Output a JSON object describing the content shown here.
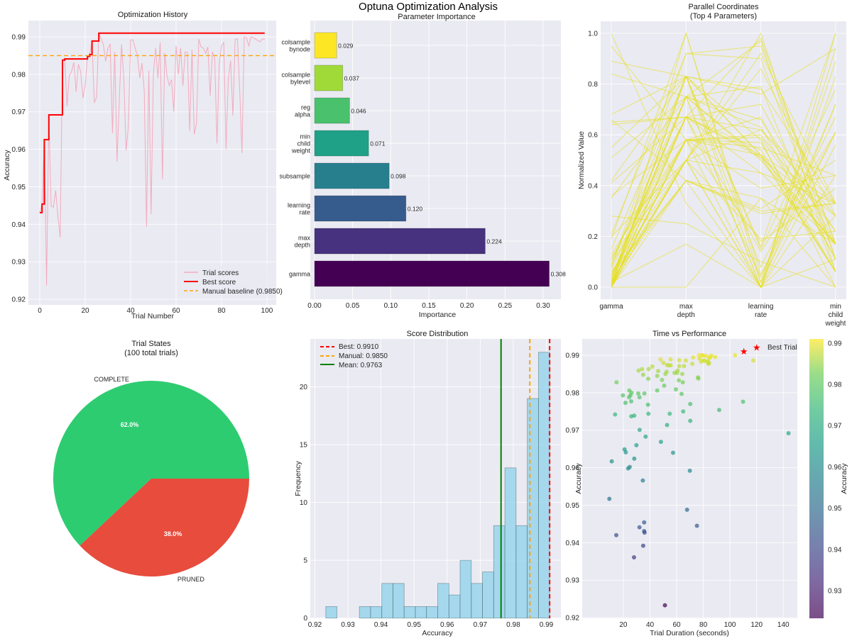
{
  "suptitle": "Optuna Optimization Analysis",
  "chart_data": [
    {
      "type": "line",
      "title": "Optimization History",
      "xlabel": "Trial Number",
      "ylabel": "Accuracy",
      "xlim": [
        -5,
        104
      ],
      "ylim": [
        0.9186,
        0.9943
      ],
      "xticks": [
        "0",
        "20",
        "40",
        "60",
        "80",
        "100"
      ],
      "yticks": [
        "0.92",
        "0.93",
        "0.94",
        "0.95",
        "0.96",
        "0.97",
        "0.98",
        "0.99"
      ],
      "grid": true,
      "legend_position": "lower-right",
      "series": [
        {
          "name": "Trial scores",
          "color": "#f4a0b4",
          "values": [
            0.9431,
            0.9454,
            0.9626,
            0.9237,
            0.9692,
            0.9449,
            0.9445,
            0.949,
            0.942,
            0.9365,
            0.9838,
            0.9841,
            0.9715,
            0.9796,
            0.9808,
            0.9832,
            0.9754,
            0.9827,
            0.9807,
            0.9737,
            0.9771,
            0.9848,
            0.9853,
            0.9889,
            0.9724,
            0.9739,
            0.991,
            0.9895,
            0.9879,
            0.9835,
            0.987,
            0.988,
            0.9643,
            0.986,
            0.9567,
            0.973,
            0.988,
            0.979,
            0.9597,
            0.9662,
            0.9892,
            0.9892,
            0.987,
            0.985,
            0.979,
            0.983,
            0.9755,
            0.9393,
            0.981,
            0.9427,
            0.98,
            0.987,
            0.979,
            0.9885,
            0.952,
            0.9857,
            0.9796,
            0.977,
            0.9786,
            0.97,
            0.9876,
            0.98,
            0.987,
            0.977,
            0.986,
            0.9858,
            0.9649,
            0.9866,
            0.964,
            0.967,
            0.9894,
            0.9873,
            0.987,
            0.9856,
            0.9873,
            0.9743,
            0.986,
            0.9843,
            0.9616,
            0.983,
            0.9876,
            0.9885,
            0.96,
            0.979,
            0.9836,
            0.969,
            0.9894,
            0.9894,
            0.976,
            0.959,
            0.99,
            0.9897,
            0.9876,
            0.99,
            0.9898,
            0.9894,
            0.989,
            0.9887,
            0.9894,
            0.9894
          ]
        },
        {
          "name": "Best score",
          "color": "#ff0000"
        },
        {
          "name": "Manual baseline (0.9850)",
          "color": "#ffa500",
          "value": 0.985
        }
      ]
    },
    {
      "type": "bar",
      "orientation": "horizontal",
      "title": "Parameter Importance",
      "xlabel": "Importance",
      "xlim": [
        0,
        0.3233
      ],
      "xticks": [
        "0.00",
        "0.05",
        "0.10",
        "0.15",
        "0.20",
        "0.25",
        "0.30"
      ],
      "categories": [
        [
          "gamma"
        ],
        [
          "max",
          "depth"
        ],
        [
          "learning",
          "rate"
        ],
        [
          "subsample"
        ],
        [
          "min",
          "child",
          "weight"
        ],
        [
          "reg",
          "alpha"
        ],
        [
          "colsample",
          "bylevel"
        ],
        [
          "colsample",
          "bynode"
        ]
      ],
      "values": [
        0.308,
        0.224,
        0.12,
        0.098,
        0.071,
        0.046,
        0.037,
        0.029
      ],
      "colors": [
        "#440154",
        "#46327e",
        "#365c8d",
        "#277f8e",
        "#1fa187",
        "#4ac16d",
        "#a0da39",
        "#fde725"
      ]
    },
    {
      "type": "line",
      "subtype": "parallel-coordinates",
      "title": [
        "Parallel Coordinates",
        "(Top 4 Parameters)"
      ],
      "ylabel": "Normalized Value",
      "axes": [
        [
          "gamma"
        ],
        [
          "max",
          "depth"
        ],
        [
          "learning",
          "rate"
        ],
        [
          "min",
          "child",
          "weight"
        ]
      ],
      "ylim": [
        -0.05,
        1.05
      ],
      "yticks": [
        "0.0",
        "0.2",
        "0.4",
        "0.6",
        "0.8",
        "1.0"
      ],
      "color": "#e6e01c",
      "lines": [
        [
          1.0,
          0.33,
          0.0,
          0.11
        ],
        [
          0.95,
          0.58,
          0.52,
          0.17
        ],
        [
          0.89,
          0.83,
          0.52,
          0.06
        ],
        [
          0.84,
          0.75,
          0.5,
          0.17
        ],
        [
          0.68,
          0.83,
          0.76,
          0.94
        ],
        [
          0.66,
          0.42,
          0.35,
          0.0
        ],
        [
          0.65,
          0.67,
          0.62,
          0.28
        ],
        [
          0.55,
          0.83,
          0.78,
          0.33
        ],
        [
          0.51,
          0.75,
          0.66,
          0.22
        ],
        [
          0.42,
          0.83,
          0.52,
          0.33
        ],
        [
          0.41,
          0.67,
          0.98,
          0.17
        ],
        [
          0.36,
          0.58,
          0.55,
          0.44
        ],
        [
          0.35,
          0.75,
          0.0,
          1.0
        ],
        [
          0.28,
          0.25,
          0.1,
          0.0
        ],
        [
          0.21,
          0.92,
          0.9,
          0.11
        ],
        [
          0.19,
          1.0,
          0.02,
          0.89
        ],
        [
          0.15,
          0.83,
          0.15,
          0.78
        ],
        [
          0.12,
          0.5,
          0.0,
          0.72
        ],
        [
          0.1,
          0.75,
          0.97,
          0.06
        ],
        [
          0.09,
          0.58,
          0.59,
          0.17
        ],
        [
          0.08,
          0.83,
          0.02,
          0.61
        ],
        [
          0.07,
          0.67,
          0.51,
          0.06
        ],
        [
          0.06,
          0.5,
          0.45,
          0.33
        ],
        [
          0.05,
          0.58,
          0.18,
          0.39
        ],
        [
          0.04,
          0.75,
          0.63,
          0.11
        ],
        [
          0.03,
          0.42,
          0.0,
          0.94
        ],
        [
          0.03,
          0.67,
          0.52,
          0.17
        ],
        [
          0.02,
          0.5,
          0.86,
          0.28
        ],
        [
          0.02,
          0.83,
          0.08,
          0.67
        ],
        [
          0.01,
          0.58,
          0.6,
          0.22
        ],
        [
          0.01,
          0.75,
          0.0,
          0.83
        ],
        [
          0.0,
          0.42,
          0.31,
          0.5
        ],
        [
          0.0,
          0.67,
          0.54,
          0.06
        ],
        [
          0.0,
          0.5,
          1.0,
          0.11
        ],
        [
          0.0,
          0.83,
          0.16,
          1.0
        ],
        [
          0.0,
          0.58,
          0.39,
          0.44
        ],
        [
          0.0,
          0.0,
          0.35,
          0.17
        ],
        [
          0.02,
          0.17,
          0.0,
          0.28
        ],
        [
          0.06,
          0.42,
          0.29,
          0.33
        ],
        [
          0.11,
          0.67,
          0.72,
          0.17
        ],
        [
          0.13,
          0.58,
          0.0,
          0.56
        ],
        [
          0.0,
          1.0,
          0.05,
          0.61
        ],
        [
          0.04,
          0.75,
          0.79,
          0.06
        ],
        [
          0.0,
          0.5,
          0.62,
          0.33
        ],
        [
          0.01,
          0.83,
          0.58,
          0.0
        ],
        [
          0.02,
          0.5,
          0.0,
          0.44
        ],
        [
          0.0,
          0.67,
          0.14,
          0.61
        ],
        [
          0.05,
          0.42,
          0.3,
          0.33
        ],
        [
          0.0,
          0.58,
          0.67,
          0.11
        ],
        [
          0.03,
          0.75,
          0.51,
          0.28
        ],
        [
          0.0,
          0.5,
          0.19,
          0.22
        ],
        [
          0.08,
          0.92,
          0.95,
          0.17
        ],
        [
          0.0,
          0.67,
          0.04,
          0.72
        ],
        [
          0.01,
          0.58,
          0.57,
          0.06
        ],
        [
          0.64,
          0.67,
          0.45,
          0.17
        ],
        [
          0.2,
          0.5,
          0.92,
          0.33
        ]
      ]
    },
    {
      "type": "pie",
      "title": [
        "Trial States",
        "(100 total trials)"
      ],
      "labels": [
        "COMPLETE",
        "PRUNED"
      ],
      "values": [
        62,
        38
      ],
      "pct_labels": [
        "62.0%",
        "38.0%"
      ],
      "colors": [
        "#2ecc71",
        "#e74c3c"
      ]
    },
    {
      "type": "bar",
      "subtype": "histogram",
      "title": "Score Distribution",
      "xlabel": "Accuracy",
      "ylabel": "Frequency",
      "bin_range": [
        0.9233,
        0.991
      ],
      "counts": [
        1,
        0,
        0,
        1,
        1,
        3,
        3,
        1,
        1,
        1,
        3,
        2,
        5,
        3,
        4,
        8,
        13,
        8,
        19,
        23
      ],
      "xlim": [
        0.9187,
        0.9944
      ],
      "ylim": [
        0,
        24.2
      ],
      "xticks": [
        "0.92",
        "0.93",
        "0.94",
        "0.95",
        "0.96",
        "0.97",
        "0.98",
        "0.99"
      ],
      "yticks": [
        "0",
        "5",
        "10",
        "15",
        "20"
      ],
      "bar_color": "#87ceeb",
      "legend_position": "upper-left",
      "vlines": [
        {
          "name": "Best: 0.9910",
          "value": 0.991,
          "color": "#ff0000",
          "style": "dashed"
        },
        {
          "name": "Manual: 0.9850",
          "value": 0.985,
          "color": "#ffa500",
          "style": "dashed"
        },
        {
          "name": "Mean: 0.9763",
          "value": 0.9763,
          "color": "#008000",
          "style": "solid"
        }
      ]
    },
    {
      "type": "scatter",
      "title": "Time vs Performance",
      "xlabel": "Trial Duration (seconds)",
      "ylabel": "Accuracy",
      "xticks": [
        "20",
        "40",
        "60",
        "80",
        "100",
        "120",
        "140"
      ],
      "yticks": [
        "0.92",
        "0.93",
        "0.94",
        "0.95",
        "0.96",
        "0.97",
        "0.98",
        "0.99"
      ],
      "colormap": "viridis",
      "color_range": [
        0.9233,
        0.991
      ],
      "colorbar_label": "Accuracy",
      "colorbar_ticks": [
        "0.93",
        "0.94",
        "0.95",
        "0.96",
        "0.97",
        "0.98",
        "0.99"
      ],
      "legend_position": "upper-right",
      "best": {
        "name": "Best Trial",
        "x": 110.4,
        "y": 0.991,
        "color": "#ff0000"
      },
      "points": [
        [
          13.8,
          0.9742
        ],
        [
          21.6,
          0.9773
        ],
        [
          25.9,
          0.9777
        ],
        [
          38.5,
          0.9768
        ],
        [
          70.2,
          0.977
        ],
        [
          109.8,
          0.9776
        ],
        [
          91.9,
          0.9754
        ],
        [
          64.9,
          0.975
        ],
        [
          54.8,
          0.9744
        ],
        [
          38.8,
          0.9744
        ],
        [
          28.2,
          0.9739
        ],
        [
          26,
          0.9737
        ],
        [
          70.2,
          0.9725
        ],
        [
          52.8,
          0.9714
        ],
        [
          32.2,
          0.9701
        ],
        [
          143.9,
          0.9692
        ],
        [
          36.7,
          0.9683
        ],
        [
          48.2,
          0.9669
        ],
        [
          29.8,
          0.966
        ],
        [
          20.9,
          0.9649
        ],
        [
          21.8,
          0.9641
        ],
        [
          57.3,
          0.964
        ],
        [
          28.2,
          0.9624
        ],
        [
          11.3,
          0.9617
        ],
        [
          24.8,
          0.9602
        ],
        [
          23.6,
          0.9598
        ],
        [
          69.9,
          0.9592
        ],
        [
          34.6,
          0.9566
        ],
        [
          9.5,
          0.9517
        ],
        [
          67.8,
          0.9488
        ],
        [
          35.6,
          0.9454
        ],
        [
          75.2,
          0.9445
        ],
        [
          32.1,
          0.9441
        ],
        [
          35.6,
          0.9431
        ],
        [
          35.9,
          0.9427
        ],
        [
          14.7,
          0.942
        ],
        [
          34.9,
          0.9392
        ],
        [
          28,
          0.9361
        ],
        [
          51.2,
          0.9233
        ],
        [
          14.9,
          0.9828
        ],
        [
          19.7,
          0.9793
        ],
        [
          24.5,
          0.9806
        ],
        [
          26.1,
          0.98
        ],
        [
          25.3,
          0.9793
        ],
        [
          24.3,
          0.9788
        ],
        [
          31.2,
          0.9798
        ],
        [
          32.1,
          0.9788
        ],
        [
          35.8,
          0.9798
        ],
        [
          31.4,
          0.9859
        ],
        [
          34.0,
          0.9863
        ],
        [
          34.9,
          0.9848
        ],
        [
          38.7,
          0.9837
        ],
        [
          39.0,
          0.9863
        ],
        [
          41.7,
          0.987
        ],
        [
          45.4,
          0.9806
        ],
        [
          45.4,
          0.9845
        ],
        [
          46.1,
          0.9858
        ],
        [
          47.9,
          0.9889
        ],
        [
          49,
          0.9834
        ],
        [
          50,
          0.988
        ],
        [
          50.6,
          0.9819
        ],
        [
          51.6,
          0.985
        ],
        [
          52.5,
          0.9856
        ],
        [
          52.7,
          0.9874
        ],
        [
          54.1,
          0.9873
        ],
        [
          55.5,
          0.9873
        ],
        [
          55.4,
          0.9889
        ],
        [
          58.4,
          0.9853
        ],
        [
          59.4,
          0.9809
        ],
        [
          60.3,
          0.9853
        ],
        [
          60.7,
          0.9859
        ],
        [
          61.6,
          0.9833
        ],
        [
          61.9,
          0.9871
        ],
        [
          61.9,
          0.9887
        ],
        [
          63.7,
          0.9797
        ],
        [
          64.2,
          0.985
        ],
        [
          64.6,
          0.9828
        ],
        [
          65.5,
          0.9871
        ],
        [
          66.9,
          0.9886
        ],
        [
          71.7,
          0.9877
        ],
        [
          72.4,
          0.9894
        ],
        [
          76,
          0.9841
        ],
        [
          76.3,
          0.9838
        ],
        [
          76.8,
          0.99
        ],
        [
          77.2,
          0.9891
        ],
        [
          78.3,
          0.9883
        ],
        [
          79.3,
          0.99
        ],
        [
          80.4,
          0.9886
        ],
        [
          82,
          0.9898
        ],
        [
          83.6,
          0.9885
        ],
        [
          84.3,
          0.9879
        ],
        [
          85,
          0.9894
        ],
        [
          79.7,
          0.9899
        ],
        [
          80.6,
          0.9885
        ],
        [
          82.9,
          0.9883
        ],
        [
          83.8,
          0.9877
        ],
        [
          84.6,
          0.9894
        ],
        [
          85.9,
          0.9899
        ],
        [
          88.9,
          0.9895
        ],
        [
          103.8,
          0.99
        ],
        [
          117.5,
          0.9886
        ]
      ]
    }
  ]
}
